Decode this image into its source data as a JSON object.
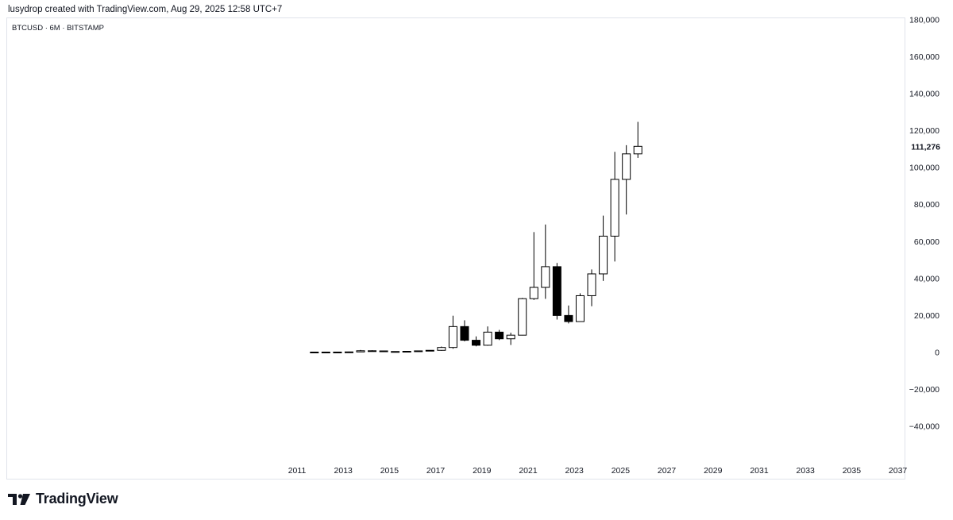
{
  "header": {
    "attribution": "lusydrop created with TradingView.com, Aug 29, 2025 12:58 UTC+7"
  },
  "symbol": {
    "ticker": "BTCUSD",
    "interval": "6M",
    "exchange": "BITSTAMP",
    "separator": "·"
  },
  "footer": {
    "brand": "TradingView",
    "logo_icon": "tradingview-logo-icon"
  },
  "colors": {
    "up_fill": "#ffffff",
    "down_fill": "#000000",
    "stroke": "#000000",
    "axis_text": "#131722",
    "frame": "#e0e3eb"
  },
  "chart_data": {
    "type": "candlestick",
    "title": "",
    "ylim": [
      -55000,
      180000
    ],
    "y_ticks": [
      180000,
      160000,
      140000,
      120000,
      100000,
      80000,
      60000,
      40000,
      20000,
      0,
      -20000,
      -40000
    ],
    "y_tick_labels": [
      "180,000",
      "160,000",
      "140,000",
      "120,000",
      "100,000",
      "80,000",
      "60,000",
      "40,000",
      "20,000",
      "0",
      "−20,000",
      "−40,000"
    ],
    "x_ticks": [
      2011,
      2013,
      2015,
      2017,
      2019,
      2021,
      2023,
      2025,
      2027,
      2029,
      2031,
      2033,
      2035,
      2037
    ],
    "x_tick_labels": [
      "2011",
      "2013",
      "2015",
      "2017",
      "2019",
      "2021",
      "2023",
      "2025",
      "2027",
      "2029",
      "2031",
      "2033",
      "2035",
      "2037"
    ],
    "last_price": 111276,
    "last_price_label": "111,276",
    "grid": false,
    "candles": [
      {
        "t": 2011.75,
        "o": 5,
        "h": 7,
        "l": 2,
        "c": 4
      },
      {
        "t": 2012.25,
        "o": 4,
        "h": 7,
        "l": 4,
        "c": 6
      },
      {
        "t": 2012.75,
        "o": 6,
        "h": 16,
        "l": 6,
        "c": 13
      },
      {
        "t": 2013.25,
        "o": 13,
        "h": 266,
        "l": 13,
        "c": 97
      },
      {
        "t": 2013.75,
        "o": 97,
        "h": 1163,
        "l": 65,
        "c": 732
      },
      {
        "t": 2014.25,
        "o": 732,
        "h": 1000,
        "l": 350,
        "c": 640
      },
      {
        "t": 2014.75,
        "o": 640,
        "h": 650,
        "l": 280,
        "c": 320
      },
      {
        "t": 2015.25,
        "o": 320,
        "h": 320,
        "l": 160,
        "c": 263
      },
      {
        "t": 2015.75,
        "o": 263,
        "h": 500,
        "l": 200,
        "c": 430
      },
      {
        "t": 2016.25,
        "o": 430,
        "h": 780,
        "l": 360,
        "c": 670
      },
      {
        "t": 2016.75,
        "o": 670,
        "h": 1000,
        "l": 520,
        "c": 963
      },
      {
        "t": 2017.25,
        "o": 963,
        "h": 3000,
        "l": 750,
        "c": 2500
      },
      {
        "t": 2017.75,
        "o": 2500,
        "h": 19666,
        "l": 1800,
        "c": 13800
      },
      {
        "t": 2018.25,
        "o": 13800,
        "h": 17200,
        "l": 5800,
        "c": 6400
      },
      {
        "t": 2018.75,
        "o": 6400,
        "h": 8500,
        "l": 3100,
        "c": 3700
      },
      {
        "t": 2019.25,
        "o": 3700,
        "h": 13880,
        "l": 3400,
        "c": 10800
      },
      {
        "t": 2019.75,
        "o": 10800,
        "h": 12000,
        "l": 6500,
        "c": 7200
      },
      {
        "t": 2020.25,
        "o": 7200,
        "h": 10500,
        "l": 3850,
        "c": 9150
      },
      {
        "t": 2020.75,
        "o": 9150,
        "h": 29300,
        "l": 9000,
        "c": 28900
      },
      {
        "t": 2021.25,
        "o": 28900,
        "h": 64900,
        "l": 28200,
        "c": 35000
      },
      {
        "t": 2021.75,
        "o": 35000,
        "h": 69000,
        "l": 28800,
        "c": 46200
      },
      {
        "t": 2022.25,
        "o": 46200,
        "h": 48200,
        "l": 17600,
        "c": 19800
      },
      {
        "t": 2022.75,
        "o": 19800,
        "h": 25200,
        "l": 15500,
        "c": 16500
      },
      {
        "t": 2023.25,
        "o": 16500,
        "h": 31800,
        "l": 16500,
        "c": 30500
      },
      {
        "t": 2023.75,
        "o": 30500,
        "h": 44700,
        "l": 24800,
        "c": 42300
      },
      {
        "t": 2024.25,
        "o": 42300,
        "h": 73800,
        "l": 38500,
        "c": 62700
      },
      {
        "t": 2024.75,
        "o": 62700,
        "h": 108300,
        "l": 49000,
        "c": 93400
      },
      {
        "t": 2025.25,
        "o": 93400,
        "h": 111900,
        "l": 74400,
        "c": 107200
      },
      {
        "t": 2025.75,
        "o": 107200,
        "h": 124500,
        "l": 105000,
        "c": 111276
      }
    ]
  }
}
